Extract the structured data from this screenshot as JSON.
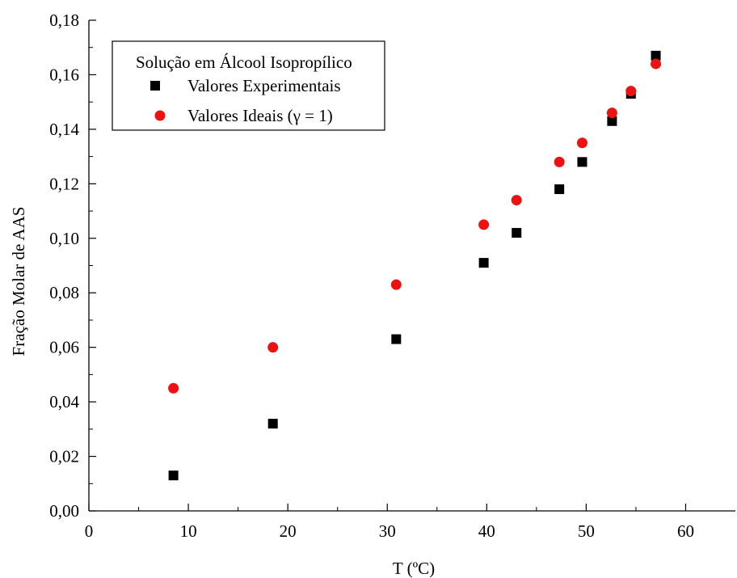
{
  "chart_data": {
    "type": "scatter",
    "title": "",
    "xlabel": "T (ºC)",
    "ylabel": "Fração Molar de AAS",
    "xlim": [
      0,
      65
    ],
    "ylim": [
      0,
      0.18
    ],
    "x_ticks": [
      0,
      10,
      20,
      30,
      40,
      50,
      60
    ],
    "x_tick_labels": [
      "0",
      "10",
      "20",
      "30",
      "40",
      "50",
      "60"
    ],
    "y_ticks": [
      0,
      0.02,
      0.04,
      0.06,
      0.08,
      0.1,
      0.12,
      0.14,
      0.16,
      0.18
    ],
    "y_tick_labels": [
      "0,00",
      "0,02",
      "0,04",
      "0,06",
      "0,08",
      "0,10",
      "0,12",
      "0,14",
      "0,16",
      "0,18"
    ],
    "grid": false,
    "legend": {
      "title": "Solução em Álcool Isopropílico",
      "position": "top-left"
    },
    "series": [
      {
        "name": "Valores Experimentais",
        "marker": "square",
        "color": "#000000",
        "x": [
          8.5,
          18.5,
          30.9,
          39.7,
          43.0,
          47.3,
          49.6,
          52.6,
          54.5,
          57.0
        ],
        "y": [
          0.013,
          0.032,
          0.063,
          0.091,
          0.102,
          0.118,
          0.128,
          0.143,
          0.153,
          0.167
        ]
      },
      {
        "name": "Valores Ideais (γ = 1)",
        "marker": "circle",
        "color": "#ee1111",
        "x": [
          8.5,
          18.5,
          30.9,
          39.7,
          43.0,
          47.3,
          49.6,
          52.6,
          54.5,
          57.0
        ],
        "y": [
          0.045,
          0.06,
          0.083,
          0.105,
          0.114,
          0.128,
          0.135,
          0.146,
          0.154,
          0.164
        ]
      }
    ]
  }
}
